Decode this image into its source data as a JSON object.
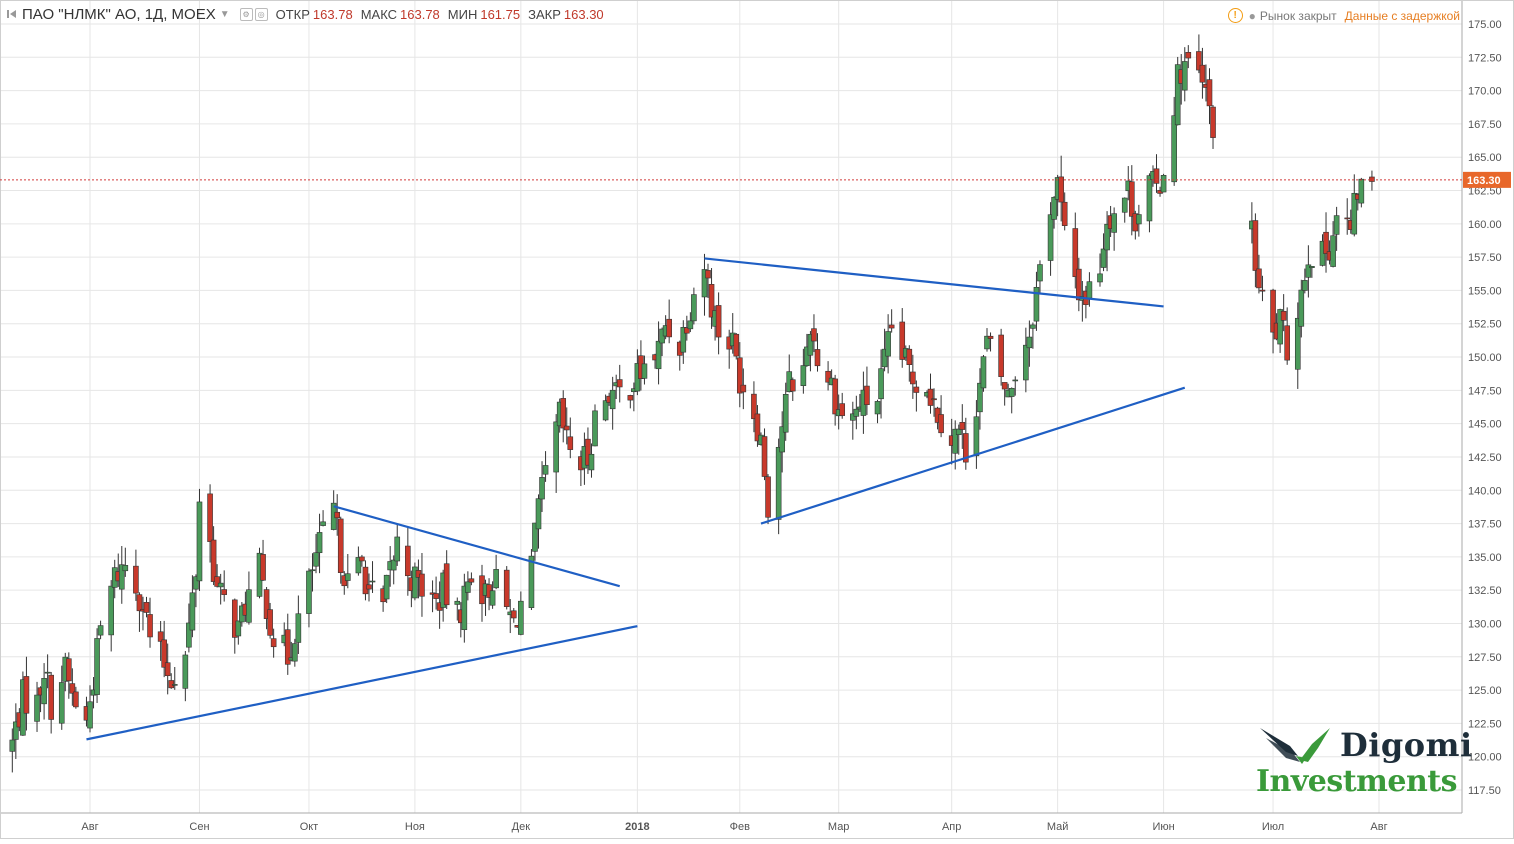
{
  "header": {
    "symbol": "ПАО \"НЛМК\" АО, 1Д, MOEX",
    "open_label": "ОТКР",
    "open": "163.78",
    "high_label": "МАКС",
    "high": "163.78",
    "low_label": "МИН",
    "low": "161.75",
    "close_label": "ЗАКР",
    "close": "163.30"
  },
  "status": {
    "market": "Рынок закрыт",
    "delay": "Данные с задержкой"
  },
  "logo": {
    "line1": "Digomi",
    "line2": "Investments"
  },
  "colors": {
    "up": "#4a9a5a",
    "down": "#c8392b",
    "trend": "#1f5fc4",
    "grid": "#e6e6e6",
    "price_line": "#d23b3b",
    "price_tag": "#e8672a"
  },
  "chart_data": {
    "type": "candlestick",
    "title": "ПАО \"НЛМК\" АО, 1Д, MOEX",
    "ylim": [
      116.25,
      176.25
    ],
    "y_ticks": [
      "175.00",
      "172.50",
      "170.00",
      "167.50",
      "165.00",
      "162.50",
      "160.00",
      "157.50",
      "155.00",
      "152.50",
      "150.00",
      "147.50",
      "145.00",
      "142.50",
      "140.00",
      "137.50",
      "135.00",
      "132.50",
      "130.00",
      "127.50",
      "125.00",
      "122.50",
      "120.00",
      "117.50"
    ],
    "x_ticks": [
      {
        "label": "Авг",
        "date": "2017-08-01"
      },
      {
        "label": "Сен",
        "date": "2017-09-01"
      },
      {
        "label": "Окт",
        "date": "2017-10-02"
      },
      {
        "label": "Ноя",
        "date": "2017-11-01"
      },
      {
        "label": "Дек",
        "date": "2017-12-01"
      },
      {
        "label": "2018",
        "date": "2018-01-03"
      },
      {
        "label": "Фев",
        "date": "2018-02-01"
      },
      {
        "label": "Мар",
        "date": "2018-03-01"
      },
      {
        "label": "Апр",
        "date": "2018-04-02"
      },
      {
        "label": "Май",
        "date": "2018-05-02"
      },
      {
        "label": "Июн",
        "date": "2018-06-01"
      },
      {
        "label": "Июл",
        "date": "2018-07-02"
      },
      {
        "label": "Авг",
        "date": "2018-08-01"
      }
    ],
    "last_price": "163.30",
    "price_path": [
      [
        "2017-07-10",
        121.0
      ],
      [
        "2017-07-13",
        124.5
      ],
      [
        "2017-07-17",
        124.0
      ],
      [
        "2017-07-19",
        126.8
      ],
      [
        "2017-07-21",
        124.0
      ],
      [
        "2017-07-25",
        126.5
      ],
      [
        "2017-07-27",
        124.5
      ],
      [
        "2017-07-31",
        122.5
      ],
      [
        "2017-08-02",
        126.0
      ],
      [
        "2017-08-04",
        129.5
      ],
      [
        "2017-08-08",
        133.5
      ],
      [
        "2017-08-11",
        134.5
      ],
      [
        "2017-08-14",
        133.0
      ],
      [
        "2017-08-16",
        131.5
      ],
      [
        "2017-08-18",
        129.0
      ],
      [
        "2017-08-22",
        127.0
      ],
      [
        "2017-08-24",
        126.0
      ],
      [
        "2017-08-28",
        127.5
      ],
      [
        "2017-08-31",
        134.0
      ],
      [
        "2017-09-01",
        139.5
      ],
      [
        "2017-09-04",
        136.0
      ],
      [
        "2017-09-06",
        132.5
      ],
      [
        "2017-09-08",
        131.5
      ],
      [
        "2017-09-12",
        129.5
      ],
      [
        "2017-09-14",
        131.5
      ],
      [
        "2017-09-18",
        134.0
      ],
      [
        "2017-09-20",
        131.5
      ],
      [
        "2017-09-22",
        129.0
      ],
      [
        "2017-09-26",
        127.5
      ],
      [
        "2017-09-28",
        129.5
      ],
      [
        "2017-10-02",
        133.0
      ],
      [
        "2017-10-04",
        135.0
      ],
      [
        "2017-10-06",
        136.5
      ],
      [
        "2017-10-09",
        138.5
      ],
      [
        "2017-10-11",
        135.0
      ],
      [
        "2017-10-13",
        133.0
      ],
      [
        "2017-10-17",
        134.5
      ],
      [
        "2017-10-19",
        132.5
      ],
      [
        "2017-10-23",
        131.0
      ],
      [
        "2017-10-25",
        134.0
      ],
      [
        "2017-10-27",
        136.0
      ],
      [
        "2017-10-31",
        133.5
      ],
      [
        "2017-11-02",
        133.0
      ],
      [
        "2017-11-07",
        131.5
      ],
      [
        "2017-11-09",
        132.5
      ],
      [
        "2017-11-13",
        130.5
      ],
      [
        "2017-11-15",
        132.0
      ],
      [
        "2017-11-17",
        134.0
      ],
      [
        "2017-11-21",
        132.0
      ],
      [
        "2017-11-23",
        133.5
      ],
      [
        "2017-11-27",
        131.0
      ],
      [
        "2017-11-29",
        130.0
      ],
      [
        "2017-12-01",
        131.5
      ],
      [
        "2017-12-04",
        134.0
      ],
      [
        "2017-12-06",
        138.5
      ],
      [
        "2017-12-08",
        141.0
      ],
      [
        "2017-12-12",
        145.5
      ],
      [
        "2017-12-14",
        143.5
      ],
      [
        "2017-12-18",
        142.0
      ],
      [
        "2017-12-20",
        142.5
      ],
      [
        "2017-12-22",
        145.5
      ],
      [
        "2017-12-26",
        147.5
      ],
      [
        "2017-12-28",
        147.0
      ],
      [
        "2018-01-03",
        148.5
      ],
      [
        "2018-01-09",
        150.5
      ],
      [
        "2018-01-11",
        152.5
      ],
      [
        "2018-01-15",
        151.0
      ],
      [
        "2018-01-17",
        153.0
      ],
      [
        "2018-01-19",
        155.0
      ],
      [
        "2018-01-22",
        157.0
      ],
      [
        "2018-01-24",
        154.0
      ],
      [
        "2018-01-26",
        152.0
      ],
      [
        "2018-01-30",
        151.0
      ],
      [
        "2018-02-01",
        148.5
      ],
      [
        "2018-02-05",
        146.0
      ],
      [
        "2018-02-07",
        144.0
      ],
      [
        "2018-02-09",
        139.0
      ],
      [
        "2018-02-13",
        145.0
      ],
      [
        "2018-02-15",
        148.0
      ],
      [
        "2018-02-19",
        149.0
      ],
      [
        "2018-02-21",
        152.5
      ],
      [
        "2018-02-23",
        150.0
      ],
      [
        "2018-02-27",
        148.0
      ],
      [
        "2018-03-01",
        146.0
      ],
      [
        "2018-03-05",
        145.5
      ],
      [
        "2018-03-07",
        146.5
      ],
      [
        "2018-03-12",
        147.0
      ],
      [
        "2018-03-14",
        149.5
      ],
      [
        "2018-03-16",
        152.0
      ],
      [
        "2018-03-20",
        149.5
      ],
      [
        "2018-03-22",
        148.5
      ],
      [
        "2018-03-26",
        148.0
      ],
      [
        "2018-03-28",
        146.5
      ],
      [
        "2018-04-02",
        144.0
      ],
      [
        "2018-04-04",
        144.5
      ],
      [
        "2018-04-06",
        143.0
      ],
      [
        "2018-04-10",
        148.0
      ],
      [
        "2018-04-12",
        151.0
      ],
      [
        "2018-04-16",
        148.5
      ],
      [
        "2018-04-18",
        147.0
      ],
      [
        "2018-04-20",
        149.0
      ],
      [
        "2018-04-24",
        152.0
      ],
      [
        "2018-04-26",
        155.0
      ],
      [
        "2018-04-30",
        161.5
      ],
      [
        "2018-05-02",
        163.0
      ],
      [
        "2018-05-04",
        159.0
      ],
      [
        "2018-05-08",
        155.0
      ],
      [
        "2018-05-10",
        154.5
      ],
      [
        "2018-05-14",
        157.0
      ],
      [
        "2018-05-16",
        160.5
      ],
      [
        "2018-05-18",
        161.0
      ],
      [
        "2018-05-22",
        162.5
      ],
      [
        "2018-05-24",
        160.5
      ],
      [
        "2018-05-28",
        163.0
      ],
      [
        "2018-05-30",
        162.5
      ],
      [
        "2018-06-01",
        164.0
      ],
      [
        "2018-06-05",
        171.0
      ],
      [
        "2018-06-07",
        172.0
      ],
      [
        "2018-06-11",
        171.0
      ],
      [
        "2018-06-13",
        169.5
      ],
      [
        "2018-06-15",
        167.5
      ],
      [
        "2018-06-26",
        159.0
      ],
      [
        "2018-06-28",
        155.0
      ],
      [
        "2018-07-02",
        151.5
      ],
      [
        "2018-07-04",
        152.5
      ],
      [
        "2018-07-06",
        150.5
      ],
      [
        "2018-07-10",
        155.0
      ],
      [
        "2018-07-12",
        158.0
      ],
      [
        "2018-07-16",
        157.5
      ],
      [
        "2018-07-18",
        158.5
      ],
      [
        "2018-07-20",
        160.5
      ],
      [
        "2018-07-24",
        159.5
      ],
      [
        "2018-07-26",
        162.5
      ],
      [
        "2018-07-30",
        163.3
      ]
    ],
    "trendlines": [
      {
        "from": [
          "2017-07-31",
          121.3
        ],
        "to": [
          "2018-01-03",
          129.8
        ]
      },
      {
        "from": [
          "2017-10-09",
          138.8
        ],
        "to": [
          "2017-12-29",
          132.8
        ]
      },
      {
        "from": [
          "2018-01-22",
          157.4
        ],
        "to": [
          "2018-06-01",
          153.8
        ]
      },
      {
        "from": [
          "2018-02-07",
          137.5
        ],
        "to": [
          "2018-06-07",
          147.7
        ]
      }
    ]
  }
}
